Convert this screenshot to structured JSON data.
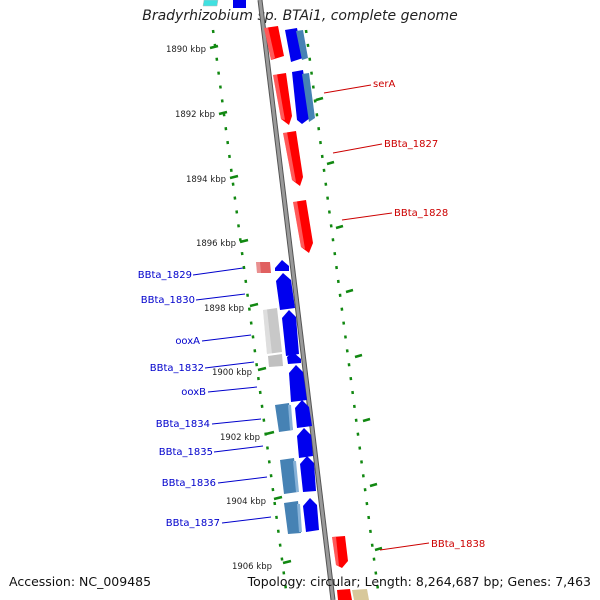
{
  "title": "Bradyrhizobium sp. BTAi1, complete genome",
  "footer": {
    "accession": "Accession: NC_009485",
    "topology": "Topology: circular; Length: 8,264,687 bp; Genes: 7,463"
  },
  "colors": {
    "backbone": "#8c8c8c",
    "tick": "#118811",
    "forward_gene": "#ff0000",
    "reverse_gene": "#0000ff",
    "reverse_steel": "#4682b4",
    "pseudo_gray": "#c0c0c0",
    "forward_label": "#cc0000",
    "reverse_label": "#0000cc"
  },
  "kbp_ticks": [
    "1890 kbp",
    "1892 kbp",
    "1894 kbp",
    "1896 kbp",
    "1898 kbp",
    "1900 kbp",
    "1902 kbp",
    "1904 kbp",
    "1906 kbp"
  ],
  "gene_labels": {
    "right": [
      "serA",
      "BBta_1827",
      "BBta_1828",
      "BBta_1838"
    ],
    "left": [
      "BBta_1829",
      "BBta_1830",
      "ooxA",
      "BBta_1832",
      "ooxB",
      "BBta_1834",
      "BBta_1835",
      "BBta_1836",
      "BBta_1837"
    ]
  }
}
